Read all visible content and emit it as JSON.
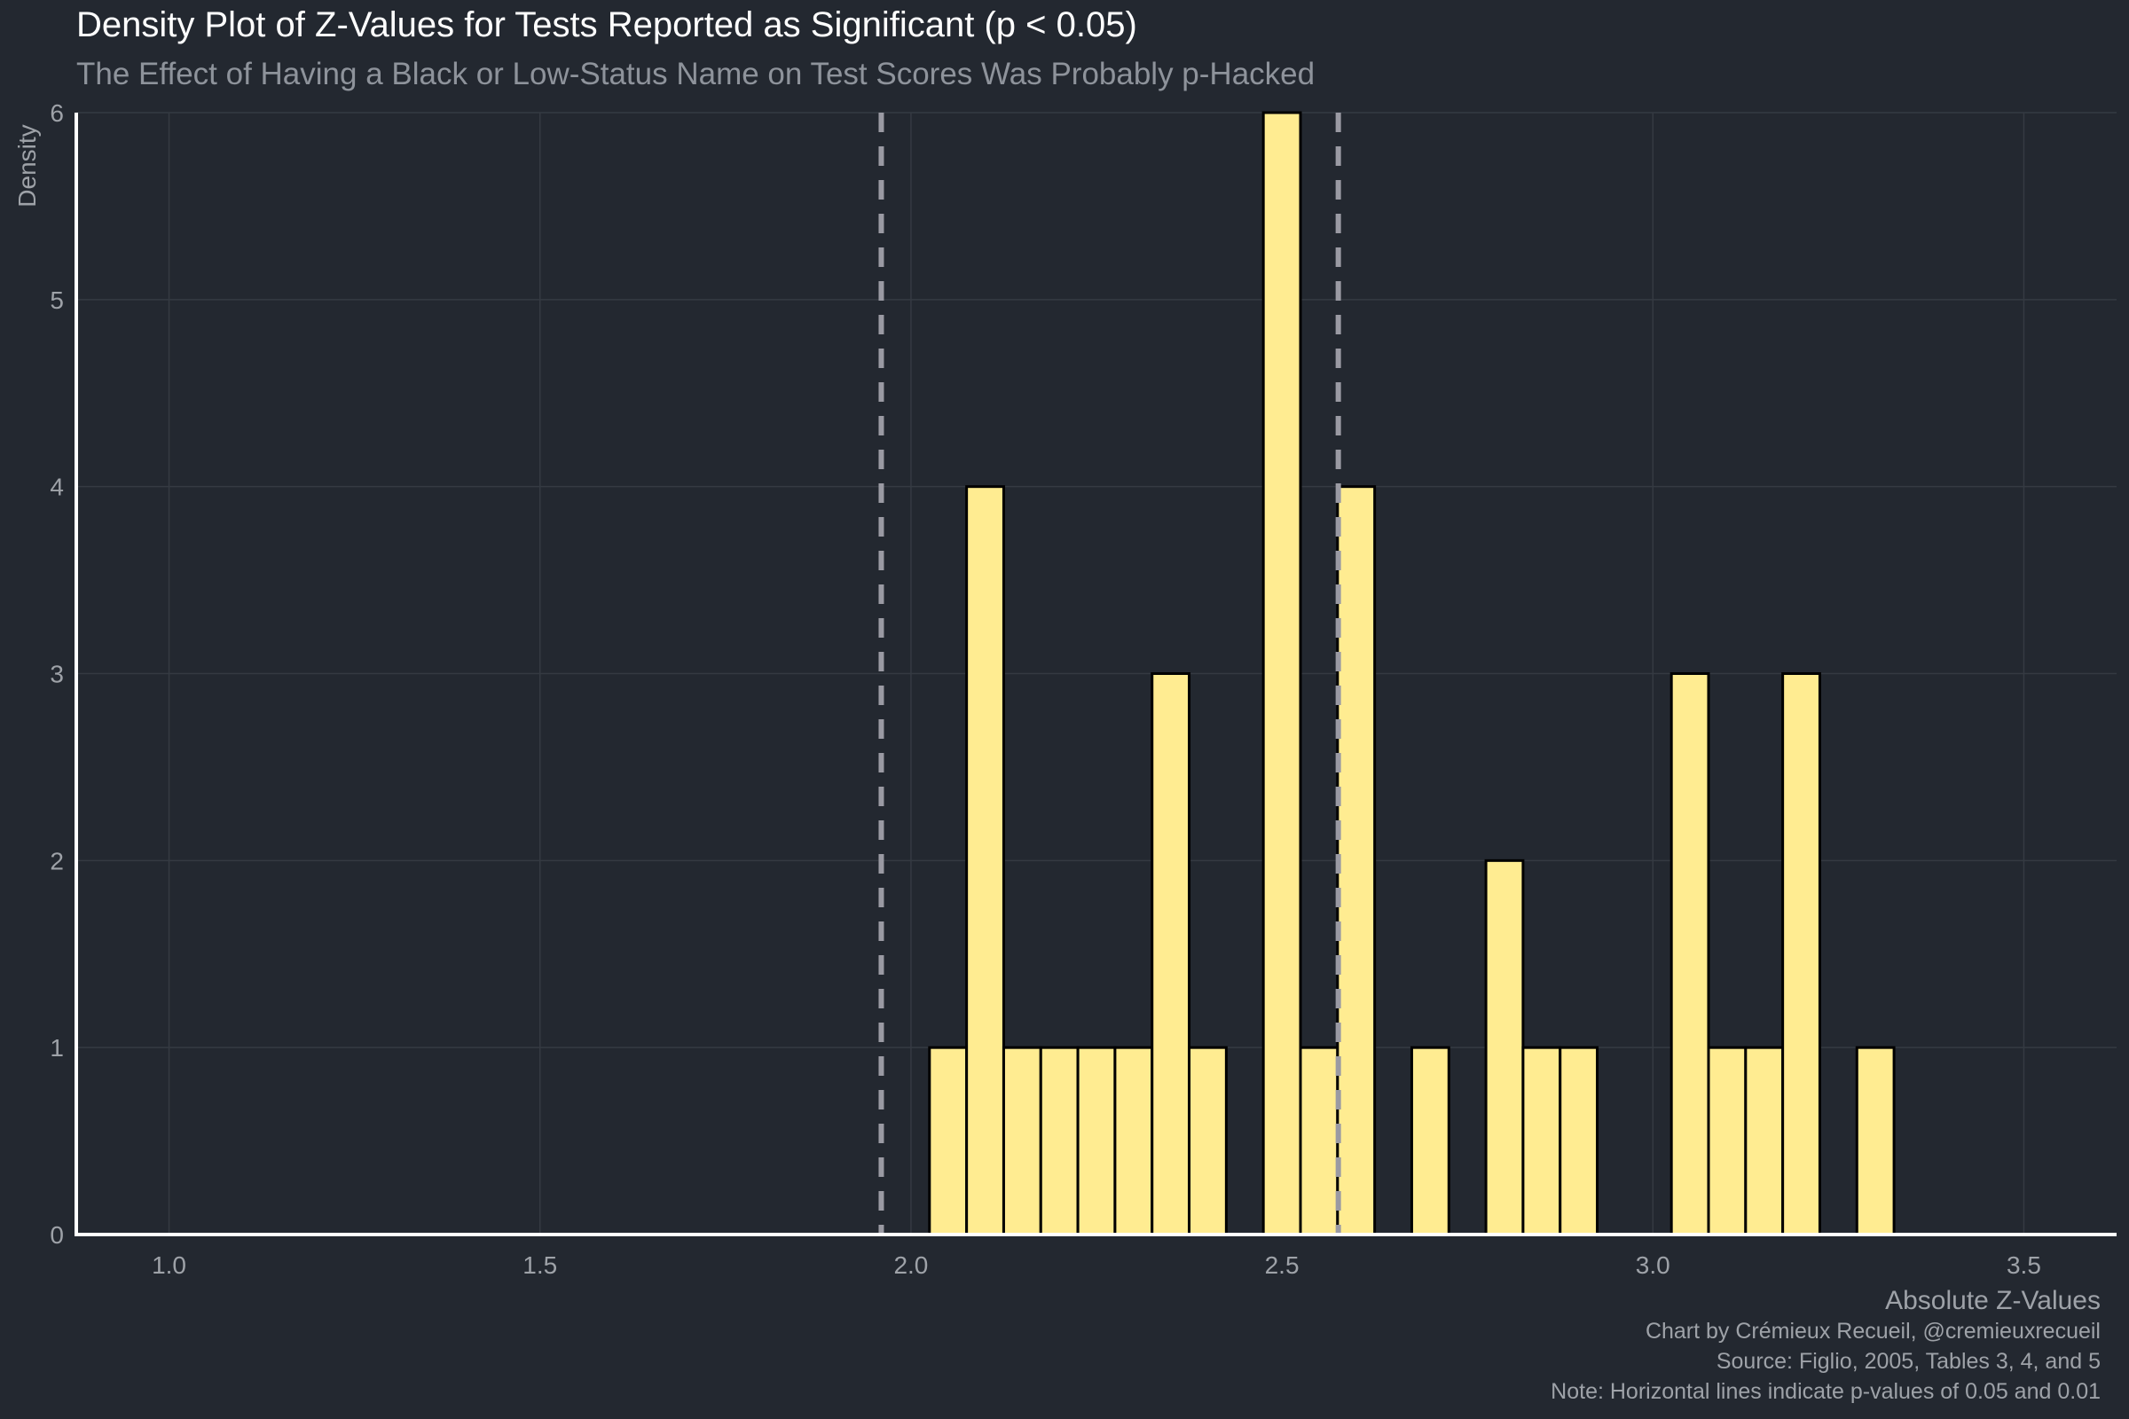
{
  "chart_data": {
    "type": "bar",
    "title": "Density Plot of Z-Values for Tests Reported as Significant (p < 0.05)",
    "subtitle": "The Effect of Having a Black or Low-Status Name on Test Scores Was Probably p-Hacked",
    "xlabel": "Absolute Z-Values",
    "ylabel": "Density",
    "xlim": [
      0.875,
      3.625
    ],
    "ylim": [
      0,
      6
    ],
    "x_ticks": [
      "1.0",
      "1.5",
      "2.0",
      "2.5",
      "3.0",
      "3.5"
    ],
    "x_tick_values": [
      1.0,
      1.5,
      2.0,
      2.5,
      3.0,
      3.5
    ],
    "y_ticks": [
      "0",
      "1",
      "2",
      "3",
      "4",
      "5",
      "6"
    ],
    "y_tick_values": [
      0,
      1,
      2,
      3,
      4,
      5,
      6
    ],
    "bin_width": 0.05,
    "bins": [
      {
        "x": 2.05,
        "value": 1
      },
      {
        "x": 2.1,
        "value": 4
      },
      {
        "x": 2.15,
        "value": 1
      },
      {
        "x": 2.2,
        "value": 1
      },
      {
        "x": 2.25,
        "value": 1
      },
      {
        "x": 2.3,
        "value": 1
      },
      {
        "x": 2.35,
        "value": 3
      },
      {
        "x": 2.4,
        "value": 1
      },
      {
        "x": 2.5,
        "value": 6
      },
      {
        "x": 2.55,
        "value": 1
      },
      {
        "x": 2.6,
        "value": 4
      },
      {
        "x": 2.7,
        "value": 1
      },
      {
        "x": 2.8,
        "value": 2
      },
      {
        "x": 2.85,
        "value": 1
      },
      {
        "x": 2.9,
        "value": 1
      },
      {
        "x": 3.05,
        "value": 3
      },
      {
        "x": 3.1,
        "value": 1
      },
      {
        "x": 3.15,
        "value": 1
      },
      {
        "x": 3.2,
        "value": 3
      },
      {
        "x": 3.3,
        "value": 1
      }
    ],
    "reference_lines": [
      1.96,
      2.576
    ],
    "grid": true,
    "bar_color": "#ffec91",
    "bar_edge_color": "#000000",
    "reference_line_color": "#9a9aa3"
  },
  "captions": [
    "Chart by Crémieux Recueil, @cremieuxrecueil",
    "Source: Figlio, 2005, Tables 3, 4, and 5",
    "Note: Horizontal lines indicate p-values of 0.05 and 0.01"
  ],
  "colors": {
    "background": "#232830",
    "grid": "#353a42",
    "axis": "#ffffff",
    "text_muted": "#9ea2a8"
  }
}
